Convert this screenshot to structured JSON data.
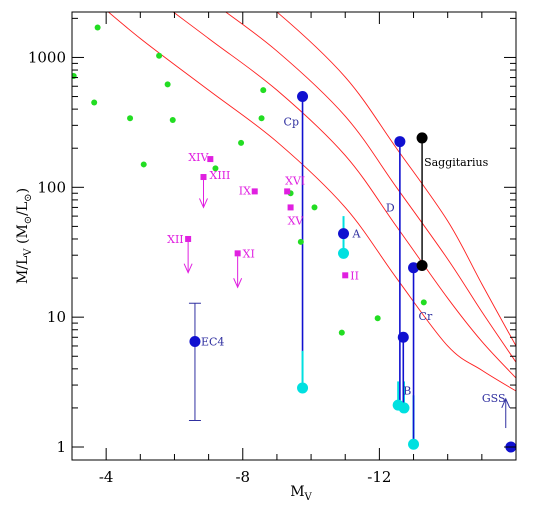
{
  "chart_data": {
    "type": "scatter",
    "title": "",
    "xlabel": "M_V",
    "ylabel": "M/L_V (M_⊙/L_⊙)",
    "xlim": [
      -3,
      -16
    ],
    "ylim_log10": [
      -0.1,
      3.35
    ],
    "y_scale": "log",
    "x_ticks": [
      {
        "value": -4,
        "label": "-4"
      },
      {
        "value": -8,
        "label": "-8"
      },
      {
        "value": -12,
        "label": "-12"
      }
    ],
    "y_ticks": [
      {
        "value": 1,
        "label": "1"
      },
      {
        "value": 10,
        "label": "10"
      },
      {
        "value": 100,
        "label": "100"
      },
      {
        "value": 1000,
        "label": "1000"
      }
    ],
    "colors": {
      "green": "#22dd22",
      "magenta": "#e020e0",
      "blue": "#1010d0",
      "cyan": "#00e0e0",
      "black": "#000000",
      "red": "#ff2020",
      "dark_blue": "#3030a0"
    },
    "model_curves": [
      {
        "color": "#ff2020",
        "points": [
          [
            -3.5,
            3000
          ],
          [
            -5,
            1400
          ],
          [
            -7,
            560
          ],
          [
            -9,
            224
          ],
          [
            -11,
            70
          ],
          [
            -12.5,
            20
          ],
          [
            -14,
            6
          ],
          [
            -15,
            3.9
          ],
          [
            -16,
            2.7
          ]
        ]
      },
      {
        "color": "#ff2020",
        "points": [
          [
            -3.5,
            7500
          ],
          [
            -5,
            3500
          ],
          [
            -7,
            1400
          ],
          [
            -9,
            560
          ],
          [
            -11,
            176
          ],
          [
            -12.5,
            50
          ],
          [
            -14,
            14
          ],
          [
            -15,
            6.5
          ],
          [
            -16,
            3.4
          ]
        ]
      },
      {
        "color": "#ff2020",
        "points": [
          [
            -3.5,
            15000
          ],
          [
            -5,
            7000
          ],
          [
            -7,
            2800
          ],
          [
            -9,
            1120
          ],
          [
            -11,
            353
          ],
          [
            -12.5,
            100
          ],
          [
            -14,
            28
          ],
          [
            -15,
            11
          ],
          [
            -16,
            4.5
          ]
        ]
      },
      {
        "color": "#ff2020",
        "points": [
          [
            -3.5,
            30000
          ],
          [
            -5,
            14000
          ],
          [
            -7,
            5600
          ],
          [
            -9,
            2240
          ],
          [
            -11,
            706
          ],
          [
            -12.5,
            200
          ],
          [
            -14,
            55
          ],
          [
            -15,
            18
          ],
          [
            -16,
            6
          ]
        ]
      }
    ],
    "green_points": [
      [
        -3.05,
        720
      ],
      [
        -3.65,
        450
      ],
      [
        -3.75,
        1700
      ],
      [
        -4.7,
        340
      ],
      [
        -5.1,
        150
      ],
      [
        -5.55,
        1030
      ],
      [
        -5.8,
        620
      ],
      [
        -5.95,
        330
      ],
      [
        -7.2,
        140
      ],
      [
        -7.95,
        220
      ],
      [
        -8.55,
        340
      ],
      [
        -8.6,
        560
      ],
      [
        -9.4,
        90
      ],
      [
        -9.7,
        38
      ],
      [
        -10.1,
        70
      ],
      [
        -10.9,
        7.6
      ],
      [
        -11.95,
        9.8
      ],
      [
        -13.3,
        13
      ]
    ],
    "magenta_points": [
      {
        "label": "XIV",
        "x": -7.05,
        "y": 165
      },
      {
        "label": "XIII",
        "x": -6.85,
        "y": 120,
        "arrow_down_to": 70
      },
      {
        "label": "IX",
        "x": -8.35,
        "y": 93
      },
      {
        "label": "XVI",
        "x": -9.3,
        "y": 93
      },
      {
        "label": "XV",
        "x": -9.4,
        "y": 70
      },
      {
        "label": "XII",
        "x": -6.4,
        "y": 40,
        "arrow_down_to": 22
      },
      {
        "label": "XI",
        "x": -7.85,
        "y": 31,
        "arrow_down_to": 17
      },
      {
        "label": "II",
        "x": -11.0,
        "y": 21
      }
    ],
    "blue_points": [
      {
        "label": "EC4",
        "x": -6.6,
        "y": 6.5,
        "err_low": 1.6,
        "err_high": 12.8
      },
      {
        "label": "Cp",
        "x": -9.75,
        "y": 500,
        "line_to": 5.5
      },
      {
        "label": "A",
        "x": -10.95,
        "y": 44
      },
      {
        "label": "D",
        "x": -12.6,
        "y": 225,
        "line_to": 2.1
      },
      {
        "label": "B",
        "x": -12.7,
        "y": 7,
        "line_to": 2.0
      },
      {
        "label": "Cr",
        "x": -13.0,
        "y": 24,
        "line_to": 1.05
      },
      {
        "label": "GSS",
        "x": -15.85,
        "y": 1.0
      }
    ],
    "cyan_points": [
      {
        "x": -9.75,
        "y": 2.85,
        "line_to": 5.5
      },
      {
        "x": -10.95,
        "y": 31,
        "line_to": 60
      },
      {
        "x": -12.55,
        "y": 2.1,
        "line_to": 3.2
      },
      {
        "x": -12.72,
        "y": 2.0,
        "line_to": 3.2
      },
      {
        "x": -13.0,
        "y": 1.05,
        "line_to": 2.5
      }
    ],
    "black_points": [
      {
        "label": "Saggitarius",
        "x": -13.25,
        "y": 240,
        "line_to": 25
      },
      {
        "x": -13.25,
        "y": 25
      }
    ],
    "arrows": [
      {
        "x": -15.7,
        "from": 1.4,
        "to": 2.35,
        "color": "#3030a0"
      }
    ]
  }
}
